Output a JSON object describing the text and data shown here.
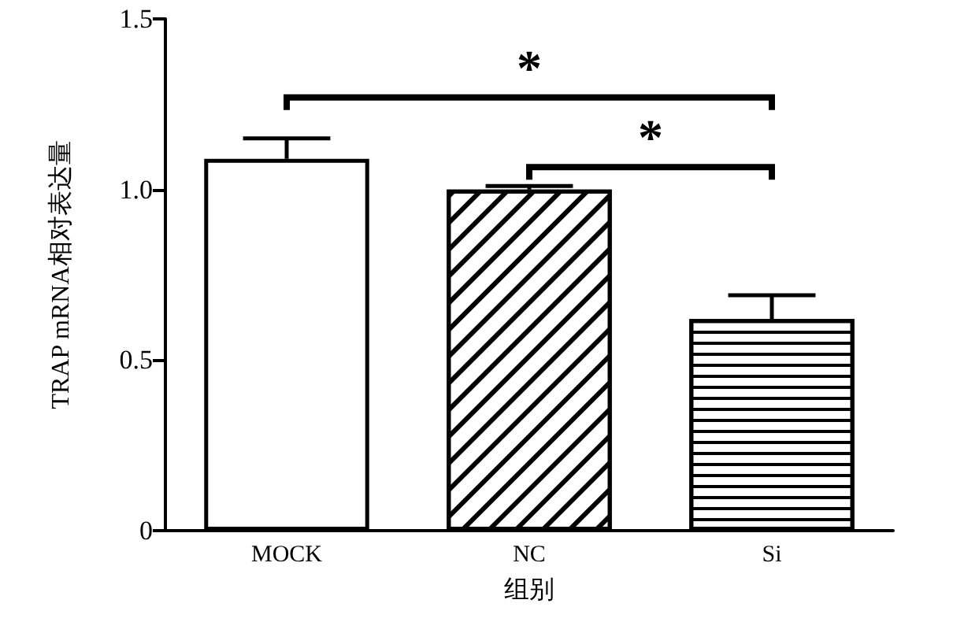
{
  "chart_data": {
    "type": "bar",
    "xlabel": "组别",
    "ylabel": "TRAP mRNA相对表达量",
    "categories": [
      "MOCK",
      "NC",
      "Si"
    ],
    "values": [
      1.09,
      1.0,
      0.62
    ],
    "errors": [
      0.06,
      0.01,
      0.07
    ],
    "color": "#ffffff",
    "ylim": [
      0,
      1.5
    ],
    "yticks": [
      0,
      0.5,
      {
        "value": 1,
        "label": "1.0"
      },
      1.5
    ],
    "annotations": [
      "*",
      "*"
    ],
    "grid": false
  }
}
